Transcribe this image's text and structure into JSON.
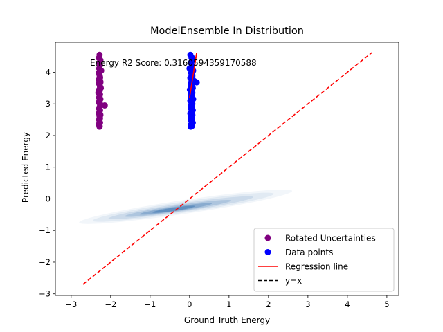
{
  "chart_data": {
    "type": "scatter",
    "title": "ModelEnsemble In Distribution",
    "xlabel": "Ground Truth Energy",
    "ylabel": "Predicted Energy",
    "xlim": [
      -3.4,
      5.3
    ],
    "ylim": [
      -3.05,
      4.95
    ],
    "xticks": [
      -3,
      -2,
      -1,
      0,
      1,
      2,
      3,
      4,
      5
    ],
    "yticks": [
      -3,
      -2,
      -1,
      0,
      1,
      2,
      3,
      4
    ],
    "grid": false,
    "legend_position": "bottom-right",
    "annotation": "Energy R2 Score: 0.3160594359170588",
    "series": [
      {
        "name": "Rotated Uncertainties",
        "type": "scatter",
        "color": "#800080",
        "x": [
          -2.28,
          -2.3,
          -2.26,
          -2.28,
          -2.27,
          -2.29,
          -2.24,
          -2.3,
          -2.28,
          -2.27,
          -2.29,
          -2.26,
          -2.3,
          -2.28,
          -2.27,
          -2.25,
          -2.29,
          -2.28,
          -2.31,
          -2.27,
          -2.28,
          -2.29,
          -2.26,
          -2.28,
          -2.3,
          -2.27,
          -2.15,
          -2.28,
          -2.29,
          -2.27,
          -2.28,
          -2.3,
          -2.26,
          -2.28,
          -2.27,
          -2.29,
          -2.28,
          -2.27,
          -2.3,
          -2.28,
          -2.26,
          -2.28,
          -2.29,
          -2.27,
          -2.28,
          -2.28
        ],
        "y": [
          4.55,
          4.45,
          4.38,
          4.3,
          4.22,
          4.12,
          4.05,
          3.98,
          3.9,
          3.82,
          3.75,
          3.7,
          3.65,
          3.6,
          3.55,
          3.5,
          3.45,
          3.4,
          3.35,
          3.3,
          3.25,
          3.2,
          3.15,
          3.1,
          3.05,
          3.0,
          2.95,
          2.9,
          2.85,
          2.8,
          2.75,
          2.7,
          2.65,
          2.6,
          2.55,
          2.5,
          2.45,
          2.4,
          2.35,
          2.3,
          3.68,
          3.72,
          3.78,
          3.85,
          3.62,
          2.28
        ]
      },
      {
        "name": "Data points",
        "type": "scatter",
        "color": "#0000ff",
        "x": [
          0.02,
          0.05,
          0.08,
          0.03,
          0.06,
          0.0,
          0.09,
          0.04,
          0.07,
          0.02,
          0.05,
          0.1,
          0.03,
          0.06,
          0.04,
          0.08,
          0.01,
          0.05,
          0.07,
          0.03,
          0.06,
          0.04,
          0.09,
          0.02,
          0.05,
          0.07,
          0.18,
          0.03,
          0.06,
          0.04,
          0.08,
          0.05,
          0.02,
          0.07,
          0.04,
          0.06,
          0.03,
          0.05,
          0.08,
          0.04,
          0.06,
          0.03,
          0.12,
          0.05,
          0.07,
          0.04
        ],
        "y": [
          4.55,
          4.45,
          4.38,
          4.3,
          4.22,
          4.12,
          4.05,
          3.98,
          3.9,
          3.82,
          3.75,
          3.7,
          3.65,
          3.6,
          3.55,
          3.5,
          3.45,
          3.4,
          3.35,
          3.3,
          3.25,
          3.2,
          3.15,
          3.1,
          3.05,
          3.0,
          3.68,
          2.95,
          2.9,
          2.85,
          2.8,
          2.75,
          2.7,
          2.65,
          2.6,
          2.55,
          2.5,
          2.45,
          2.4,
          2.35,
          2.3,
          2.28,
          3.72,
          4.48,
          3.85,
          3.35
        ]
      },
      {
        "name": "Regression line",
        "type": "line",
        "color": "#ff0000",
        "linestyle": "solid",
        "x": [
          0.0,
          0.18
        ],
        "y": [
          3.2,
          4.62
        ]
      },
      {
        "name": "y=x",
        "type": "line",
        "color": "#ff0000",
        "legend_color": "#000000",
        "linestyle": "dashed",
        "x": [
          -2.7,
          4.62
        ],
        "y": [
          -2.7,
          4.62
        ]
      }
    ],
    "density": {
      "color": "#08519c",
      "center": [
        -0.4,
        -0.33
      ],
      "ridge_from": [
        -2.8,
        -0.75
      ],
      "ridge_to": [
        2.6,
        0.25
      ]
    }
  }
}
